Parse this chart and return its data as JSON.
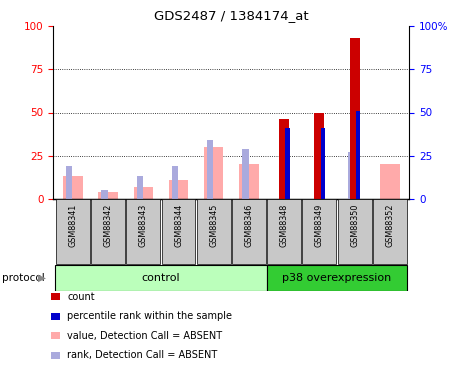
{
  "title": "GDS2487 / 1384174_at",
  "samples": [
    "GSM88341",
    "GSM88342",
    "GSM88343",
    "GSM88344",
    "GSM88345",
    "GSM88346",
    "GSM88348",
    "GSM88349",
    "GSM88350",
    "GSM88352"
  ],
  "count_values": [
    0,
    0,
    0,
    0,
    0,
    0,
    46,
    50,
    93,
    0
  ],
  "pct_rank_values": [
    0,
    0,
    0,
    0,
    0,
    0,
    41,
    41,
    51,
    0
  ],
  "absent_value": [
    13,
    4,
    7,
    11,
    30,
    20,
    0,
    0,
    0,
    20
  ],
  "absent_rank": [
    19,
    5,
    13,
    19,
    34,
    29,
    0,
    0,
    27,
    0
  ],
  "n_control": 6,
  "n_p38": 4,
  "count_color": "#cc0000",
  "pct_rank_color": "#0000cc",
  "absent_value_color": "#ffaaaa",
  "absent_rank_color": "#aaaadd",
  "control_bg": "#bbffbb",
  "p38_bg": "#33cc33",
  "ylim": [
    0,
    100
  ],
  "yticks": [
    0,
    25,
    50,
    75,
    100
  ]
}
